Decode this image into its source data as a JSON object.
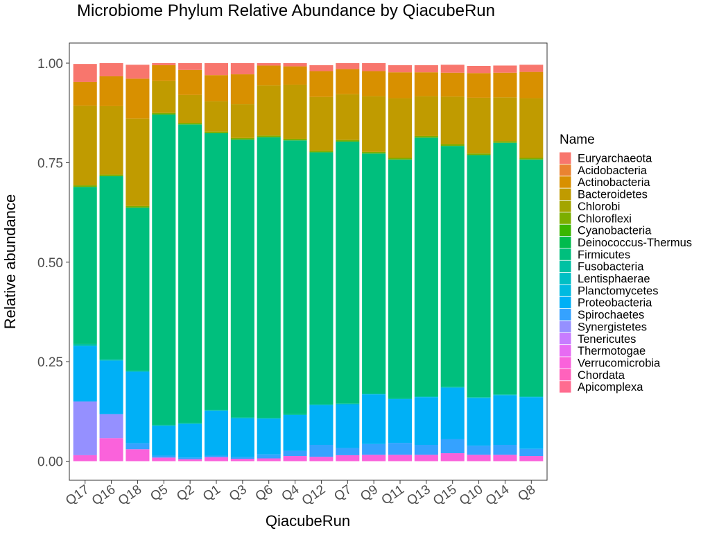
{
  "chart_data": {
    "type": "bar",
    "stacked": true,
    "title": "Microbiome Phylum Relative Abundance by QiacubeRun",
    "xlabel": "QiacubeRun",
    "ylabel": "Relative abundance",
    "ylim": [
      0,
      1
    ],
    "yticks": [
      "0.00",
      "0.25",
      "0.50",
      "0.75",
      "1.00"
    ],
    "ytick_values": [
      0,
      0.25,
      0.5,
      0.75,
      1.0
    ],
    "grid": false,
    "legend_title": "Name",
    "legend_position": "right",
    "categories": [
      "Q17",
      "Q16",
      "Q18",
      "Q5",
      "Q2",
      "Q1",
      "Q3",
      "Q6",
      "Q4",
      "Q12",
      "Q7",
      "Q9",
      "Q11",
      "Q13",
      "Q15",
      "Q10",
      "Q14",
      "Q8"
    ],
    "series": [
      {
        "name": "Euryarchaeota",
        "color": "#F8766D",
        "values": [
          0.045,
          0.033,
          0.035,
          0.005,
          0.017,
          0.03,
          0.028,
          0.006,
          0.008,
          0.015,
          0.015,
          0.02,
          0.018,
          0.018,
          0.02,
          0.018,
          0.018,
          0.018
        ]
      },
      {
        "name": "Acidobacteria",
        "color": "#EA8331",
        "values": [
          0,
          0,
          0,
          0,
          0,
          0,
          0,
          0,
          0,
          0,
          0,
          0,
          0,
          0,
          0,
          0,
          0,
          0
        ]
      },
      {
        "name": "Actinobacteria",
        "color": "#D89000",
        "values": [
          0.06,
          0.075,
          0.1,
          0.04,
          0.063,
          0.066,
          0.075,
          0.05,
          0.046,
          0.065,
          0.063,
          0.063,
          0.065,
          0.06,
          0.06,
          0.062,
          0.062,
          0.066
        ]
      },
      {
        "name": "Bacteroidetes",
        "color": "#C09B00",
        "values": [
          0.2,
          0.172,
          0.22,
          0.08,
          0.07,
          0.076,
          0.085,
          0.126,
          0.136,
          0.135,
          0.115,
          0.14,
          0.15,
          0.1,
          0.12,
          0.14,
          0.11,
          0.15
        ]
      },
      {
        "name": "Chlorobi",
        "color": "#A3A500",
        "values": [
          0,
          0,
          0,
          0,
          0,
          0,
          0,
          0,
          0,
          0,
          0,
          0,
          0,
          0,
          0,
          0,
          0,
          0
        ]
      },
      {
        "name": "Chloroflexi",
        "color": "#7CAE00",
        "values": [
          0.004,
          0.004,
          0.004,
          0.004,
          0.004,
          0.004,
          0.004,
          0.004,
          0.004,
          0.004,
          0.004,
          0.004,
          0.004,
          0.004,
          0.004,
          0.004,
          0.004,
          0.004
        ]
      },
      {
        "name": "Cyanobacteria",
        "color": "#39B600",
        "values": [
          0,
          0,
          0,
          0,
          0,
          0,
          0,
          0,
          0,
          0,
          0,
          0,
          0,
          0,
          0,
          0,
          0,
          0
        ]
      },
      {
        "name": "Deinococcus-Thermus",
        "color": "#00BB4E",
        "values": [
          0,
          0,
          0,
          0,
          0,
          0,
          0,
          0,
          0,
          0,
          0,
          0,
          0,
          0,
          0,
          0,
          0,
          0
        ]
      },
      {
        "name": "Firmicutes",
        "color": "#00BF7D",
        "values": [
          0.395,
          0.46,
          0.41,
          0.78,
          0.75,
          0.695,
          0.698,
          0.705,
          0.688,
          0.633,
          0.658,
          0.603,
          0.6,
          0.65,
          0.605,
          0.608,
          0.632,
          0.595
        ]
      },
      {
        "name": "Fusobacteria",
        "color": "#00C1A3",
        "values": [
          0.004,
          0.003,
          0.002,
          0.002,
          0.002,
          0.002,
          0.002,
          0.002,
          0.002,
          0.002,
          0.002,
          0.002,
          0.002,
          0.002,
          0.002,
          0.002,
          0.002,
          0.002
        ]
      },
      {
        "name": "Lentisphaerae",
        "color": "#00BFC4",
        "values": [
          0,
          0,
          0,
          0,
          0,
          0,
          0,
          0,
          0,
          0,
          0,
          0,
          0,
          0,
          0,
          0,
          0,
          0
        ]
      },
      {
        "name": "Planctomycetes",
        "color": "#00BAE0",
        "values": [
          0,
          0,
          0,
          0,
          0,
          0,
          0,
          0,
          0,
          0,
          0,
          0,
          0,
          0,
          0,
          0,
          0,
          0
        ]
      },
      {
        "name": "Proteobacteria",
        "color": "#00B0F6",
        "values": [
          0.14,
          0.135,
          0.18,
          0.075,
          0.085,
          0.113,
          0.098,
          0.09,
          0.09,
          0.1,
          0.11,
          0.125,
          0.11,
          0.12,
          0.13,
          0.12,
          0.125,
          0.13
        ]
      },
      {
        "name": "Spirochaetes",
        "color": "#35A2FF",
        "values": [
          0,
          0,
          0.015,
          0.005,
          0.004,
          0.004,
          0.004,
          0.01,
          0.013,
          0.03,
          0.018,
          0.027,
          0.03,
          0.025,
          0.035,
          0.023,
          0.025,
          0.018
        ]
      },
      {
        "name": "Synergistetes",
        "color": "#9590FF",
        "values": [
          0.135,
          0.06,
          0,
          0,
          0,
          0,
          0,
          0,
          0,
          0,
          0,
          0,
          0,
          0,
          0,
          0,
          0,
          0
        ]
      },
      {
        "name": "Tenericutes",
        "color": "#C77CFF",
        "values": [
          0,
          0,
          0,
          0,
          0,
          0,
          0,
          0,
          0,
          0,
          0,
          0,
          0,
          0,
          0,
          0,
          0,
          0
        ]
      },
      {
        "name": "Thermotogae",
        "color": "#E76BF3",
        "values": [
          0,
          0,
          0,
          0,
          0,
          0,
          0,
          0,
          0,
          0,
          0,
          0,
          0,
          0,
          0,
          0,
          0,
          0
        ]
      },
      {
        "name": "Verrucomicrobia",
        "color": "#FA62DB",
        "values": [
          0.015,
          0.058,
          0.03,
          0.009,
          0.005,
          0.01,
          0.006,
          0.007,
          0.013,
          0.011,
          0.015,
          0.016,
          0.016,
          0.016,
          0.02,
          0.016,
          0.016,
          0.013
        ]
      },
      {
        "name": "Chordata",
        "color": "#FF62BC",
        "values": [
          0,
          0,
          0,
          0,
          0,
          0,
          0,
          0,
          0,
          0,
          0,
          0,
          0,
          0,
          0,
          0,
          0,
          0
        ]
      },
      {
        "name": "Apicomplexa",
        "color": "#FF6C90",
        "values": [
          0,
          0,
          0,
          0,
          0,
          0,
          0,
          0,
          0,
          0,
          0,
          0,
          0,
          0,
          0,
          0,
          0,
          0
        ]
      }
    ]
  }
}
